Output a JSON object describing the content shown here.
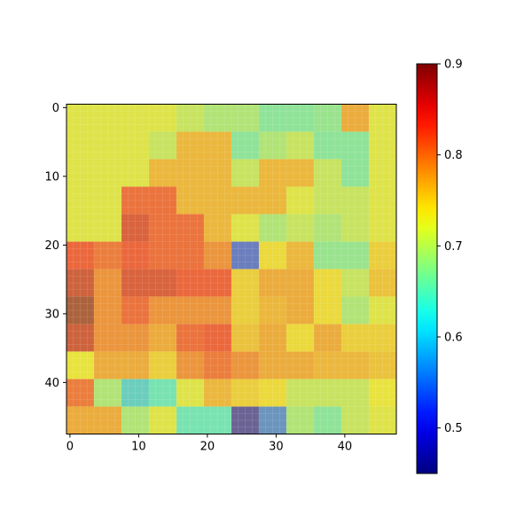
{
  "chart_data": {
    "type": "heatmap",
    "title": "",
    "xlabel": "",
    "ylabel": "",
    "xlim": [
      -0.5,
      47.5
    ],
    "ylim": [
      47.5,
      -0.5
    ],
    "xticks": [
      0,
      10,
      20,
      30,
      40
    ],
    "yticks": [
      0,
      10,
      20,
      30,
      40
    ],
    "xtick_labels": [
      "0",
      "10",
      "20",
      "30",
      "40"
    ],
    "ytick_labels": [
      "0",
      "10",
      "20",
      "30",
      "40"
    ],
    "colormap": "jet",
    "overlay_alpha": 0.5,
    "block_size": 4,
    "colorbar": {
      "vmin": 0.45,
      "vmax": 0.9,
      "ticks": [
        0.5,
        0.6,
        0.7,
        0.8,
        0.9
      ],
      "tick_labels": [
        "0.5",
        "0.6",
        "0.7",
        "0.8",
        "0.9"
      ]
    },
    "grid": [
      [
        0.72,
        0.72,
        0.72,
        0.72,
        0.7,
        0.68,
        0.68,
        0.65,
        0.65,
        0.66,
        0.78,
        0.72
      ],
      [
        0.72,
        0.72,
        0.72,
        0.7,
        0.77,
        0.77,
        0.65,
        0.68,
        0.7,
        0.65,
        0.65,
        0.72
      ],
      [
        0.72,
        0.72,
        0.72,
        0.77,
        0.77,
        0.77,
        0.7,
        0.77,
        0.77,
        0.7,
        0.65,
        0.72
      ],
      [
        0.72,
        0.72,
        0.83,
        0.83,
        0.77,
        0.77,
        0.77,
        0.77,
        0.72,
        0.7,
        0.7,
        0.72
      ],
      [
        0.72,
        0.72,
        0.86,
        0.83,
        0.83,
        0.77,
        0.72,
        0.68,
        0.7,
        0.68,
        0.7,
        0.72
      ],
      [
        0.84,
        0.82,
        0.84,
        0.83,
        0.83,
        0.8,
        0.53,
        0.74,
        0.77,
        0.66,
        0.66,
        0.75
      ],
      [
        0.87,
        0.8,
        0.86,
        0.86,
        0.84,
        0.84,
        0.75,
        0.78,
        0.78,
        0.74,
        0.7,
        0.76
      ],
      [
        0.9,
        0.8,
        0.83,
        0.8,
        0.8,
        0.8,
        0.75,
        0.77,
        0.78,
        0.74,
        0.68,
        0.72
      ],
      [
        0.87,
        0.8,
        0.8,
        0.78,
        0.83,
        0.84,
        0.76,
        0.78,
        0.74,
        0.78,
        0.75,
        0.75
      ],
      [
        0.73,
        0.78,
        0.78,
        0.75,
        0.8,
        0.82,
        0.8,
        0.78,
        0.78,
        0.77,
        0.77,
        0.76
      ],
      [
        0.82,
        0.68,
        0.6,
        0.63,
        0.72,
        0.77,
        0.75,
        0.74,
        0.7,
        0.7,
        0.7,
        0.73
      ],
      [
        0.78,
        0.78,
        0.68,
        0.72,
        0.63,
        0.63,
        0.47,
        0.55,
        0.68,
        0.65,
        0.7,
        0.72
      ]
    ]
  }
}
